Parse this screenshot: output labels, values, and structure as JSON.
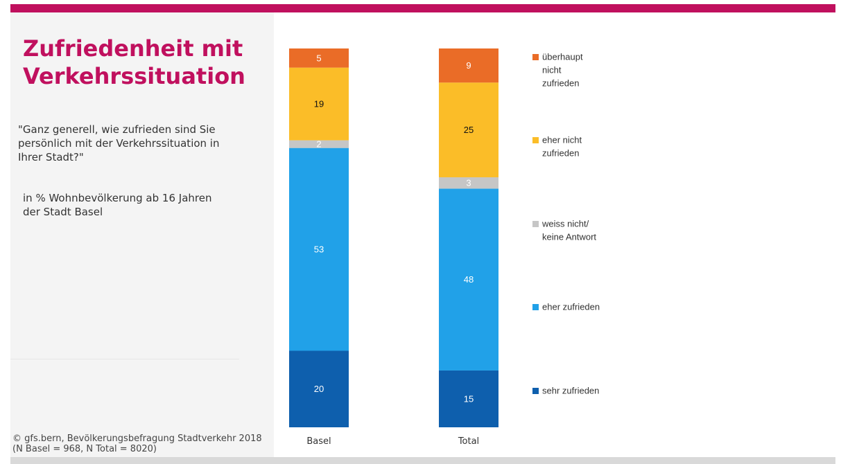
{
  "header": {
    "title": "Zufriedenheit mit Verkehrssituation",
    "question": "\"Ganz generell, wie zufrieden sind Sie persönlich mit der Verkehrssituation in Ihrer Stadt?\"",
    "subtitle": "in % Wohnbevölkerung ab 16 Jahren der Stadt Basel"
  },
  "footer": {
    "source": "© gfs.bern, Bevölkerungsbefragung Stadtverkehr 2018",
    "sample": "(N Basel = 968, N Total = 8020)"
  },
  "colors": {
    "brand": "#c0105e",
    "panel_background": "#f4f4f4",
    "bottom_bar": "#d9d9d9"
  },
  "chart_data": {
    "type": "bar",
    "stacked": true,
    "orientation": "vertical",
    "categories": [
      "Basel",
      "Total"
    ],
    "series": [
      {
        "name": "sehr zufrieden",
        "values": [
          20,
          15
        ],
        "color": "#0e5fad",
        "label_color": "#ffffff"
      },
      {
        "name": "eher zufrieden",
        "values": [
          53,
          48
        ],
        "color": "#21a1e8",
        "label_color": "#ffffff"
      },
      {
        "name": "weiss nicht/ keine Antwort",
        "values": [
          2,
          3
        ],
        "color": "#c6c6c6",
        "label_color": "#ffffff"
      },
      {
        "name": "eher nicht zufrieden",
        "values": [
          19,
          25
        ],
        "color": "#fbbd28",
        "label_color": "#111111"
      },
      {
        "name": "überhaupt nicht zufrieden",
        "values": [
          5,
          9
        ],
        "color": "#ea6c27",
        "label_color": "#ffffff"
      }
    ],
    "data_labels": true,
    "ylim": [
      0,
      100
    ],
    "axes_visible": false,
    "grid": false,
    "legend": {
      "position": "right",
      "order": [
        "überhaupt nicht zufrieden",
        "eher nicht zufrieden",
        "weiss nicht/ keine Antwort",
        "eher zufrieden",
        "sehr zufrieden"
      ]
    },
    "xlabel": "",
    "ylabel": ""
  }
}
